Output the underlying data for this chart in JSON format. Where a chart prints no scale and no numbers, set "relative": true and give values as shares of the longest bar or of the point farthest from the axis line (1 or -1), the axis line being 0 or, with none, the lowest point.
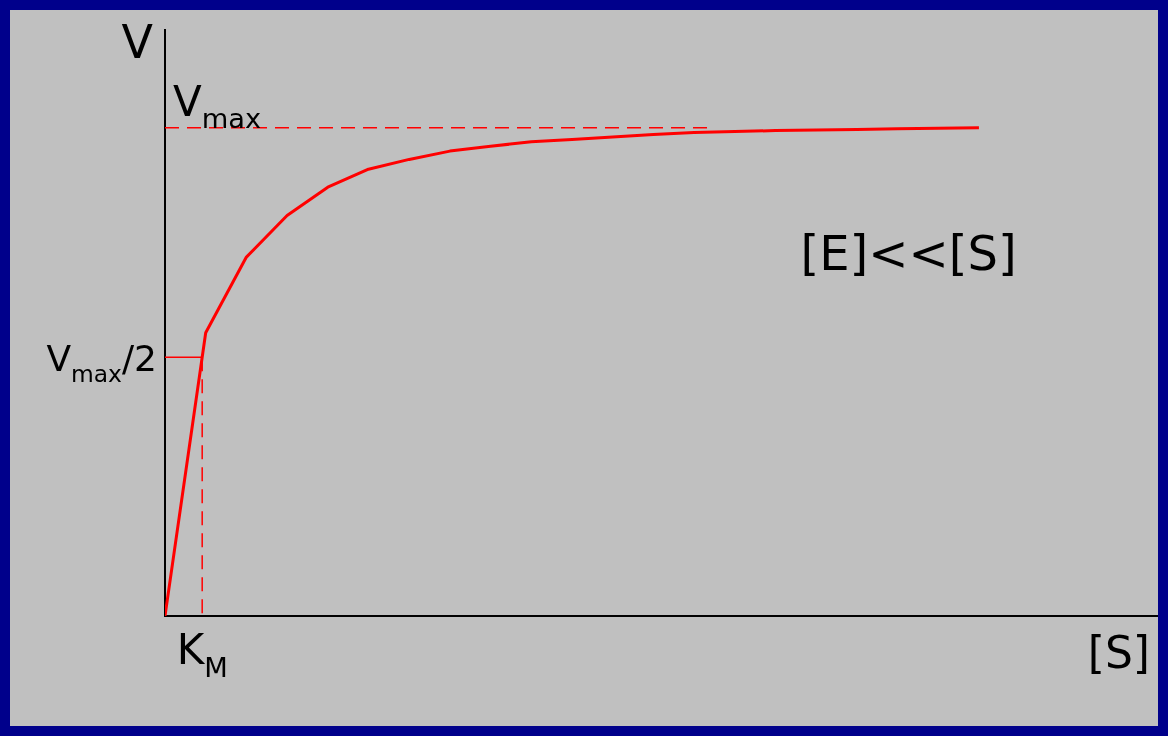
{
  "chart_data": {
    "type": "line",
    "relative": true,
    "xlabel": "[S]",
    "ylabel": "V",
    "categories": [
      null,
      null,
      null,
      null,
      null,
      null,
      null,
      null,
      null,
      null,
      null,
      null,
      null,
      null,
      null,
      null,
      null,
      null,
      null,
      null,
      null
    ],
    "series": [
      {
        "color": "#ff0000",
        "values": [
          0,
          0.58,
          0.735,
          0.82,
          0.878,
          0.915,
          0.935,
          0.952,
          0.962,
          0.971,
          0.976,
          0.981,
          0.986,
          0.99,
          0.992,
          0.994,
          0.995,
          0.996,
          0.998,
          0.999,
          1
        ]
      }
    ],
    "ref_lines": [
      {
        "axis": "y",
        "value": 1,
        "label": "V$_{max}$",
        "color": "#ff0000",
        "line_style": "dashed"
      },
      {
        "axis": "y",
        "value": 0.53,
        "label": "V$_{max}$/2",
        "color": "#ff0000",
        "line_style": "solid"
      }
    ],
    "annotations": [
      "[E]<<[S]",
      "K$_{M}$"
    ],
    "grid": false,
    "legend": false,
    "marker": "none",
    "line_style": "solid"
  }
}
